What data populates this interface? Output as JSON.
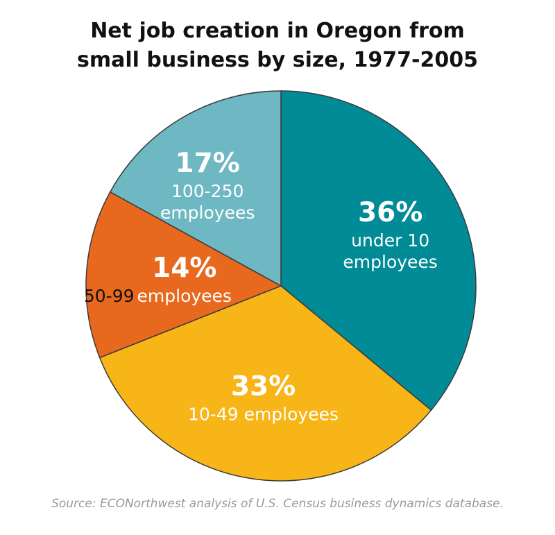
{
  "chart_data": {
    "type": "pie",
    "title": [
      "Net job creation in Oregon from",
      "small business by size, 1977-2005"
    ],
    "unit": "%",
    "slices": [
      {
        "pct_label": "36%",
        "value": 36,
        "label_lines": [
          "under 10",
          "employees"
        ],
        "color": "#008b96",
        "outside_prefix": ""
      },
      {
        "pct_label": "33%",
        "value": 33,
        "label_lines": [
          "10-49 employees"
        ],
        "color": "#f8b517",
        "outside_prefix": ""
      },
      {
        "pct_label": "14%",
        "value": 14,
        "label_lines": [
          "employees"
        ],
        "color": "#e8691e",
        "outside_prefix": "50-99"
      },
      {
        "pct_label": "17%",
        "value": 17,
        "label_lines": [
          "100-250",
          "employees"
        ],
        "color": "#6db8c2",
        "outside_prefix": ""
      }
    ],
    "source": "Source: ECONorthwest analysis of U.S. Census business dynamics database."
  }
}
